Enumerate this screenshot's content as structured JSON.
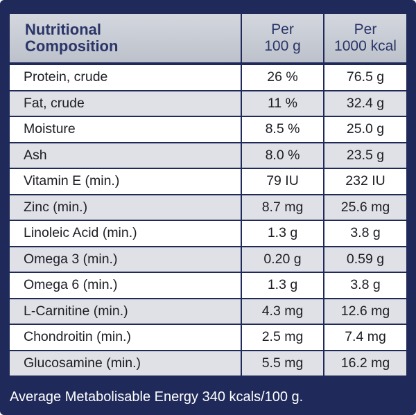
{
  "header": {
    "title_line1": "Nutritional",
    "title_line2": "Composition",
    "col1_line1": "Per",
    "col1_line2": "100 g",
    "col2_line1": "Per",
    "col2_line2": "1000 kcal"
  },
  "rows": [
    {
      "name": "Protein, crude",
      "per100g": "26 %",
      "per1000kcal": "76.5 g"
    },
    {
      "name": "Fat, crude",
      "per100g": "11 %",
      "per1000kcal": "32.4 g"
    },
    {
      "name": "Moisture",
      "per100g": "8.5 %",
      "per1000kcal": "25.0 g"
    },
    {
      "name": "Ash",
      "per100g": "8.0 %",
      "per1000kcal": "23.5 g"
    },
    {
      "name": "Vitamin E (min.)",
      "per100g": "79 IU",
      "per1000kcal": "232 IU"
    },
    {
      "name": "Zinc (min.)",
      "per100g": "8.7 mg",
      "per1000kcal": "25.6 mg"
    },
    {
      "name": "Linoleic Acid (min.)",
      "per100g": "1.3 g",
      "per1000kcal": "3.8 g"
    },
    {
      "name": "Omega 3 (min.)",
      "per100g": "0.20 g",
      "per1000kcal": "0.59 g"
    },
    {
      "name": "Omega 6 (min.)",
      "per100g": "1.3 g",
      "per1000kcal": "3.8 g"
    },
    {
      "name": "L-Carnitine (min.)",
      "per100g": "4.3 mg",
      "per1000kcal": "12.6 mg"
    },
    {
      "name": "Chondroitin (min.)",
      "per100g": "2.5 mg",
      "per1000kcal": "7.4 mg"
    },
    {
      "name": "Glucosamine (min.)",
      "per100g": "5.5 mg",
      "per1000kcal": "16.2 mg"
    }
  ],
  "footer": {
    "text": "Average Metabolisable Energy 340 kcals/100 g."
  },
  "colors": {
    "panel": "#1f2a5a",
    "header_bg": "#c8ccd4",
    "header_text": "#2a3568",
    "row_alt": "#dfe1e6"
  }
}
